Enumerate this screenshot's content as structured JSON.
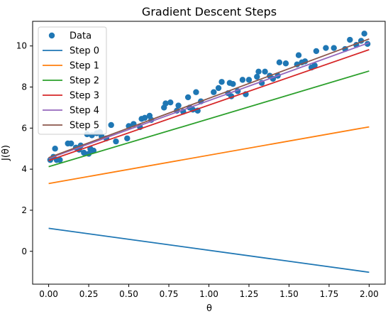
{
  "chart_data": {
    "type": "scatter",
    "title": "Gradient Descent Steps",
    "xlabel": "θ",
    "ylabel": "J(θ)",
    "xlim": [
      -0.1,
      2.1
    ],
    "ylim": [
      -1.6,
      11.2
    ],
    "xticks": [
      0.0,
      0.25,
      0.5,
      0.75,
      1.0,
      1.25,
      1.5,
      1.75,
      2.0
    ],
    "xtick_labels": [
      "0.00",
      "0.25",
      "0.50",
      "0.75",
      "1.00",
      "1.25",
      "1.50",
      "1.75",
      "2.00"
    ],
    "yticks": [
      0,
      2,
      4,
      6,
      8,
      10
    ],
    "ytick_labels": [
      "0",
      "2",
      "4",
      "6",
      "8",
      "10"
    ],
    "grid": false,
    "legend_position": "top-left",
    "colors": {
      "data": "#1f77b4",
      "step0": "#1f77b4",
      "step1": "#ff7f0e",
      "step2": "#2ca02c",
      "step3": "#d62728",
      "step4": "#9467bd",
      "step5": "#8c564b"
    },
    "scatter": {
      "name": "Data",
      "points": [
        [
          0.01,
          4.45
        ],
        [
          0.03,
          4.6
        ],
        [
          0.04,
          5.0
        ],
        [
          0.05,
          4.45
        ],
        [
          0.07,
          4.45
        ],
        [
          0.12,
          5.25
        ],
        [
          0.14,
          5.25
        ],
        [
          0.17,
          5.05
        ],
        [
          0.19,
          4.95
        ],
        [
          0.2,
          5.15
        ],
        [
          0.22,
          4.8
        ],
        [
          0.24,
          5.7
        ],
        [
          0.25,
          4.75
        ],
        [
          0.26,
          5.0
        ],
        [
          0.27,
          5.65
        ],
        [
          0.28,
          4.9
        ],
        [
          0.3,
          5.75
        ],
        [
          0.32,
          5.8
        ],
        [
          0.33,
          5.6
        ],
        [
          0.36,
          5.5
        ],
        [
          0.39,
          6.15
        ],
        [
          0.42,
          5.35
        ],
        [
          0.49,
          5.5
        ],
        [
          0.5,
          6.1
        ],
        [
          0.53,
          6.2
        ],
        [
          0.57,
          6.05
        ],
        [
          0.58,
          6.45
        ],
        [
          0.6,
          6.5
        ],
        [
          0.63,
          6.6
        ],
        [
          0.64,
          6.4
        ],
        [
          0.72,
          7.0
        ],
        [
          0.73,
          7.2
        ],
        [
          0.76,
          7.25
        ],
        [
          0.8,
          6.85
        ],
        [
          0.81,
          7.1
        ],
        [
          0.84,
          6.8
        ],
        [
          0.87,
          7.5
        ],
        [
          0.88,
          7.0
        ],
        [
          0.9,
          6.9
        ],
        [
          0.92,
          7.75
        ],
        [
          0.93,
          6.85
        ],
        [
          0.95,
          7.3
        ],
        [
          1.03,
          7.75
        ],
        [
          1.06,
          7.95
        ],
        [
          1.08,
          8.25
        ],
        [
          1.12,
          7.7
        ],
        [
          1.13,
          8.2
        ],
        [
          1.14,
          7.55
        ],
        [
          1.15,
          8.15
        ],
        [
          1.18,
          7.8
        ],
        [
          1.21,
          8.35
        ],
        [
          1.23,
          7.65
        ],
        [
          1.25,
          8.35
        ],
        [
          1.3,
          8.5
        ],
        [
          1.31,
          8.75
        ],
        [
          1.33,
          8.2
        ],
        [
          1.35,
          8.75
        ],
        [
          1.38,
          8.55
        ],
        [
          1.4,
          8.4
        ],
        [
          1.43,
          8.55
        ],
        [
          1.44,
          9.2
        ],
        [
          1.48,
          9.15
        ],
        [
          1.55,
          9.1
        ],
        [
          1.56,
          9.55
        ],
        [
          1.58,
          9.2
        ],
        [
          1.6,
          9.25
        ],
        [
          1.64,
          8.95
        ],
        [
          1.66,
          9.05
        ],
        [
          1.67,
          9.75
        ],
        [
          1.73,
          9.9
        ],
        [
          1.78,
          9.9
        ],
        [
          1.85,
          9.85
        ],
        [
          1.88,
          10.3
        ],
        [
          1.92,
          10.05
        ],
        [
          1.95,
          10.25
        ],
        [
          1.97,
          10.6
        ],
        [
          1.99,
          10.1
        ]
      ]
    },
    "series": [
      {
        "name": "Step 0",
        "x": [
          0,
          2
        ],
        "y": [
          1.12,
          -1.02
        ]
      },
      {
        "name": "Step 1",
        "x": [
          0,
          2
        ],
        "y": [
          3.3,
          6.06
        ]
      },
      {
        "name": "Step 2",
        "x": [
          0,
          2
        ],
        "y": [
          4.12,
          8.78
        ]
      },
      {
        "name": "Step 3",
        "x": [
          0,
          2
        ],
        "y": [
          4.42,
          9.82
        ]
      },
      {
        "name": "Step 4",
        "x": [
          0,
          2
        ],
        "y": [
          4.52,
          10.16
        ]
      },
      {
        "name": "Step 5",
        "x": [
          0,
          2
        ],
        "y": [
          4.56,
          10.34
        ]
      }
    ]
  }
}
